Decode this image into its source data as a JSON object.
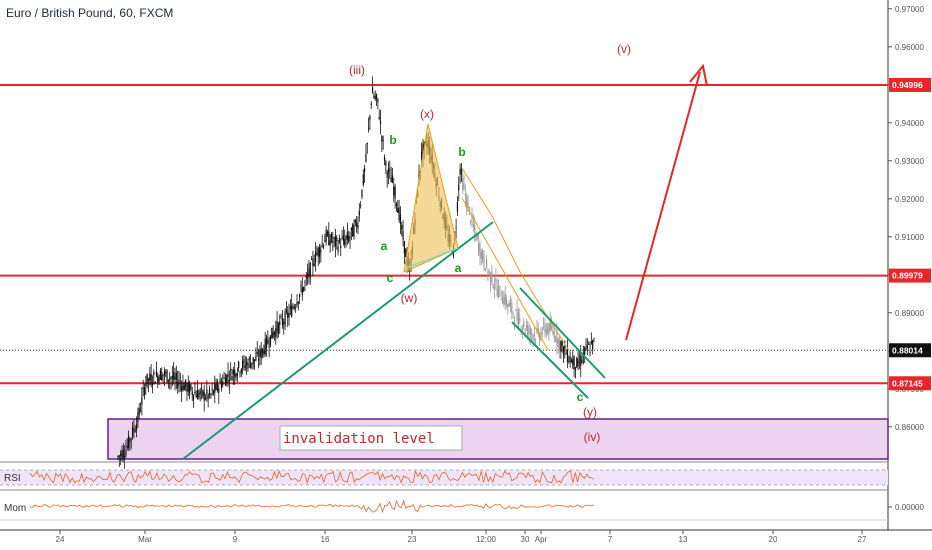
{
  "header": {
    "title": "Euro / British Pound, 60, FXCM"
  },
  "colors": {
    "candle": "#111111",
    "candle_faded": "#9a9a9a",
    "level_line": "#e8262a",
    "trendline": "#1a9a74",
    "triangle_fill": "#f2c460",
    "triangle_stroke": "#e2a31c",
    "wave_red": "#c0282a",
    "wave_green": "#1a9a1a",
    "zone_fill": "#ecd3f0",
    "zone_stroke": "#6a1f86",
    "arrow": "#e8262a",
    "rsi": "#e8652a",
    "mom": "#e8652a",
    "price_tag": "#e8262a",
    "current_tag": "#111111"
  },
  "chart_data": {
    "type": "candlestick",
    "symbol": "EUR/GBP",
    "timeframe": "60",
    "ylim": [
      0.851,
      0.971
    ],
    "x_ticks": [
      "24",
      "Mar",
      "9",
      "16",
      "23",
      "12:00",
      "30",
      "Apr",
      "7",
      "13",
      "20",
      "27"
    ],
    "y_ticks": [
      "0.97000",
      "0.96000",
      "0.95000",
      "0.94000",
      "0.93000",
      "0.92000",
      "0.91000",
      "0.90000",
      "0.89000",
      "0.88000",
      "0.87000",
      "0.86000"
    ],
    "horizontal_levels": [
      {
        "label": "0.94996",
        "value": 0.94996
      },
      {
        "label": "0.89979",
        "value": 0.89979
      },
      {
        "label": "0.87145",
        "value": 0.87145
      }
    ],
    "current_price": {
      "label": "0.88014",
      "value": 0.88014
    },
    "price_path": [
      [
        0.03,
        0.852
      ],
      [
        0.05,
        0.854
      ],
      [
        0.08,
        0.862
      ],
      [
        0.1,
        0.872
      ],
      [
        0.14,
        0.874
      ],
      [
        0.18,
        0.872
      ],
      [
        0.22,
        0.869
      ],
      [
        0.26,
        0.868
      ],
      [
        0.3,
        0.873
      ],
      [
        0.34,
        0.876
      ],
      [
        0.38,
        0.878
      ],
      [
        0.42,
        0.885
      ],
      [
        0.46,
        0.89
      ],
      [
        0.5,
        0.898
      ],
      [
        0.52,
        0.904
      ],
      [
        0.55,
        0.91
      ],
      [
        0.58,
        0.908
      ],
      [
        0.61,
        0.91
      ],
      [
        0.63,
        0.914
      ],
      [
        0.65,
        0.93
      ],
      [
        0.665,
        0.948
      ],
      [
        0.68,
        0.945
      ],
      [
        0.7,
        0.928
      ],
      [
        0.715,
        0.925
      ],
      [
        0.73,
        0.918
      ],
      [
        0.745,
        0.908
      ],
      [
        0.76,
        0.9
      ]
    ],
    "price_path_b": [
      [
        0.76,
        0.9
      ],
      [
        0.775,
        0.918
      ],
      [
        0.79,
        0.932
      ],
      [
        0.805,
        0.935
      ],
      [
        0.82,
        0.928
      ],
      [
        0.835,
        0.92
      ],
      [
        0.855,
        0.91
      ],
      [
        0.87,
        0.906
      ]
    ],
    "price_path_c": [
      [
        0.87,
        0.906
      ],
      [
        0.885,
        0.928
      ],
      [
        0.9,
        0.92
      ],
      [
        0.92,
        0.912
      ],
      [
        0.94,
        0.905
      ],
      [
        0.96,
        0.9
      ],
      [
        0.98,
        0.896
      ],
      [
        1.0,
        0.893
      ],
      [
        1.02,
        0.89
      ],
      [
        1.04,
        0.887
      ],
      [
        1.06,
        0.885
      ],
      [
        1.08,
        0.884
      ],
      [
        1.1,
        0.886
      ],
      [
        1.12,
        0.885
      ],
      [
        1.14,
        0.881
      ],
      [
        1.16,
        0.878
      ],
      [
        1.18,
        0.876
      ],
      [
        1.2,
        0.88
      ],
      [
        1.22,
        0.882
      ]
    ],
    "wave_labels": {
      "red": [
        "(iii)",
        "(x)",
        "(w)",
        "(y)",
        "(iv)",
        "(v)"
      ],
      "green": [
        "b",
        "a",
        "c",
        "b",
        "a",
        "c"
      ]
    },
    "zone_label": "invalidation  level",
    "indicators": [
      {
        "name": "RSI"
      },
      {
        "name": "Mom",
        "tick": "0.00000"
      }
    ]
  }
}
